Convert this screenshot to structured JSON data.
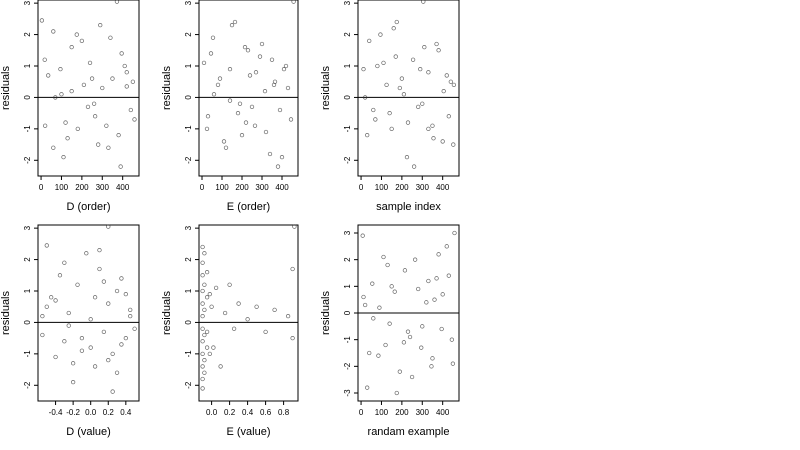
{
  "chart_data": [
    {
      "type": "scatter",
      "title": "",
      "xlabel": "D (order)",
      "ylabel": "residuals",
      "xlim": [
        -15,
        480
      ],
      "ylim": [
        -2.5,
        3.1
      ],
      "xticks": [
        0,
        100,
        200,
        300,
        400
      ],
      "xtick_labels": [
        "0",
        "100",
        "200",
        "300",
        "400"
      ],
      "yticks": [
        -2,
        -1,
        0,
        1,
        2,
        3
      ],
      "ytick_labels": [
        "-2",
        "-1",
        "0",
        "1",
        "2",
        "3"
      ],
      "reference_line_y": 0,
      "marker": "open-circle",
      "series": [
        {
          "x": [
            4,
            18,
            35,
            60,
            95,
            120,
            150,
            180,
            210,
            240,
            265,
            290,
            320,
            350,
            372,
            395,
            420,
            440,
            458,
            60,
            110,
            230,
            300,
            380,
            100,
            200,
            280,
            410,
            150,
            260,
            340,
            450,
            20,
            130,
            330,
            420,
            70,
            250,
            390,
            175
          ],
          "y": [
            2.45,
            1.2,
            0.7,
            2.1,
            0.9,
            -0.8,
            1.6,
            -1.0,
            0.4,
            1.1,
            -0.6,
            2.3,
            -0.9,
            0.6,
            3.05,
            1.4,
            0.35,
            -0.4,
            -0.7,
            -1.6,
            -1.9,
            -0.3,
            0.3,
            -1.2,
            0.1,
            1.8,
            -1.5,
            1.0,
            0.2,
            -0.2,
            1.9,
            0.5,
            -0.9,
            -1.3,
            -1.6,
            0.8,
            0.0,
            0.6,
            -2.2,
            2.0
          ]
        }
      ]
    },
    {
      "type": "scatter",
      "title": "",
      "xlabel": "E (order)",
      "ylabel": "residuals",
      "xlim": [
        -15,
        480
      ],
      "ylim": [
        -2.5,
        3.1
      ],
      "xticks": [
        0,
        100,
        200,
        300,
        400
      ],
      "xtick_labels": [
        "0",
        "100",
        "200",
        "300",
        "400"
      ],
      "yticks": [
        -2,
        -1,
        0,
        1,
        2,
        3
      ],
      "ytick_labels": [
        "-2",
        "-1",
        "0",
        "1",
        "2",
        "3"
      ],
      "reference_line_y": 0,
      "marker": "open-circle",
      "series": [
        {
          "x": [
            10,
            30,
            55,
            80,
            110,
            140,
            165,
            190,
            215,
            240,
            265,
            290,
            315,
            340,
            365,
            390,
            420,
            445,
            458,
            150,
            230,
            320,
            400,
            60,
            200,
            350,
            120,
            270,
            430,
            25,
            180,
            300,
            380,
            90,
            250,
            410,
            45,
            220,
            360,
            140
          ],
          "y": [
            1.1,
            -0.6,
            1.9,
            0.4,
            -1.4,
            0.9,
            2.4,
            -0.2,
            1.6,
            0.7,
            -0.9,
            1.3,
            0.2,
            -1.8,
            0.5,
            -0.4,
            1.0,
            -0.7,
            3.05,
            2.3,
            1.5,
            -1.1,
            -1.9,
            0.1,
            -1.2,
            1.2,
            -1.6,
            0.8,
            0.3,
            -1.0,
            -0.5,
            1.7,
            -2.2,
            0.6,
            -0.3,
            0.9,
            1.4,
            -0.8,
            0.4,
            -0.1
          ]
        }
      ]
    },
    {
      "type": "scatter",
      "title": "",
      "xlabel": "sample index",
      "ylabel": "residuals",
      "xlim": [
        -15,
        480
      ],
      "ylim": [
        -2.5,
        3.1
      ],
      "xticks": [
        0,
        100,
        200,
        300,
        400
      ],
      "xtick_labels": [
        "0",
        "100",
        "200",
        "300",
        "400"
      ],
      "yticks": [
        -2,
        -1,
        0,
        1,
        2,
        3
      ],
      "ytick_labels": [
        "-2",
        "-1",
        "0",
        "1",
        "2",
        "3"
      ],
      "reference_line_y": 0,
      "marker": "open-circle",
      "series": [
        {
          "x": [
            12,
            40,
            70,
            95,
            125,
            150,
            175,
            200,
            225,
            255,
            280,
            305,
            330,
            355,
            380,
            405,
            430,
            452,
            160,
            310,
            60,
            210,
            350,
            110,
            260,
            420,
            30,
            190,
            300,
            440,
            80,
            230,
            370,
            140,
            290,
            400,
            20,
            170,
            330,
            455
          ],
          "y": [
            0.9,
            1.8,
            -0.7,
            2.0,
            0.4,
            -1.0,
            2.4,
            0.6,
            -1.9,
            1.2,
            -0.3,
            3.05,
            0.8,
            -1.3,
            1.5,
            0.2,
            -0.6,
            -1.5,
            2.2,
            1.6,
            -0.4,
            0.1,
            -0.9,
            1.1,
            -2.2,
            0.7,
            -1.2,
            0.3,
            -0.2,
            0.5,
            1.0,
            -0.8,
            1.7,
            -0.5,
            0.9,
            -1.4,
            0.0,
            1.3,
            -1.0,
            0.4
          ]
        }
      ]
    },
    {
      "type": "scatter",
      "title": "",
      "xlabel": "D (value)",
      "ylabel": "residuals",
      "xlim": [
        -0.6,
        0.55
      ],
      "ylim": [
        -2.5,
        3.1
      ],
      "xticks": [
        -0.4,
        -0.2,
        0.0,
        0.2,
        0.4
      ],
      "xtick_labels": [
        "-0.4",
        "-0.2",
        "0.0",
        "0.2",
        "0.4"
      ],
      "yticks": [
        -2,
        -1,
        0,
        1,
        2,
        3
      ],
      "ytick_labels": [
        "-2",
        "-1",
        "0",
        "1",
        "2",
        "3"
      ],
      "reference_line_y": 0,
      "marker": "open-circle",
      "series": [
        {
          "x": [
            -0.55,
            -0.5,
            -0.45,
            -0.4,
            -0.35,
            -0.3,
            -0.25,
            -0.2,
            -0.15,
            -0.1,
            -0.05,
            0.0,
            0.05,
            0.1,
            0.15,
            0.2,
            0.25,
            0.3,
            0.35,
            0.4,
            0.45,
            0.5,
            -0.5,
            -0.3,
            -0.1,
            0.1,
            0.3,
            0.45,
            -0.4,
            -0.2,
            0.0,
            0.2,
            0.4,
            -0.55,
            0.15,
            0.35,
            -0.25,
            0.05,
            0.25,
            0.2
          ],
          "y": [
            -0.4,
            2.45,
            0.8,
            -1.1,
            1.5,
            -0.6,
            0.3,
            -1.9,
            1.2,
            -0.9,
            2.2,
            0.1,
            -1.4,
            1.7,
            -0.3,
            0.6,
            -1.0,
            1.0,
            -0.7,
            0.9,
            0.2,
            -0.2,
            0.5,
            1.9,
            -0.5,
            2.3,
            -1.6,
            0.4,
            0.7,
            -1.3,
            -0.8,
            3.05,
            -0.5,
            0.2,
            1.3,
            1.4,
            -0.1,
            0.8,
            -2.2,
            -1.2
          ]
        }
      ]
    },
    {
      "type": "scatter",
      "title": "",
      "xlabel": "E (value)",
      "ylabel": "residuals",
      "xlim": [
        -0.14,
        0.96
      ],
      "ylim": [
        -2.5,
        3.1
      ],
      "xticks": [
        0.0,
        0.2,
        0.4,
        0.6,
        0.8
      ],
      "xtick_labels": [
        "0.0",
        "0.2",
        "0.4",
        "0.6",
        "0.8"
      ],
      "yticks": [
        -2,
        -1,
        0,
        1,
        2,
        3
      ],
      "ytick_labels": [
        "-2",
        "-1",
        "0",
        "1",
        "2",
        "3"
      ],
      "reference_line_y": 0,
      "marker": "open-circle",
      "series": [
        {
          "x": [
            -0.1,
            -0.1,
            -0.1,
            -0.1,
            -0.1,
            -0.1,
            -0.1,
            -0.1,
            -0.1,
            -0.1,
            -0.1,
            -0.1,
            -0.08,
            -0.08,
            -0.08,
            -0.08,
            -0.08,
            -0.08,
            -0.05,
            -0.05,
            -0.05,
            -0.05,
            -0.02,
            -0.02,
            0.0,
            0.02,
            0.05,
            0.1,
            0.15,
            0.2,
            0.25,
            0.3,
            0.4,
            0.5,
            0.6,
            0.7,
            0.85,
            0.9,
            0.92,
            0.9
          ],
          "y": [
            2.4,
            1.9,
            1.5,
            1.0,
            0.6,
            0.2,
            -0.2,
            -0.6,
            -1.0,
            -1.4,
            -1.8,
            -2.1,
            2.2,
            1.2,
            0.4,
            -0.4,
            -1.2,
            -1.6,
            1.6,
            0.8,
            -0.8,
            -0.3,
            0.9,
            -1.0,
            0.5,
            -0.8,
            1.1,
            -1.4,
            0.3,
            1.2,
            -0.2,
            0.6,
            0.1,
            0.5,
            -0.3,
            0.4,
            0.2,
            1.7,
            3.05,
            -0.5
          ]
        }
      ]
    },
    {
      "type": "scatter",
      "title": "",
      "xlabel": "randam example",
      "ylabel": "residuals",
      "xlim": [
        -15,
        480
      ],
      "ylim": [
        -3.3,
        3.3
      ],
      "xticks": [
        0,
        100,
        200,
        300,
        400
      ],
      "xtick_labels": [
        "0",
        "100",
        "200",
        "300",
        "400"
      ],
      "yticks": [
        -3,
        -2,
        -1,
        0,
        1,
        2,
        3
      ],
      "ytick_labels": [
        "-3",
        "-2",
        "-1",
        "0",
        "1",
        "2",
        "3"
      ],
      "reference_line_y": 0,
      "marker": "open-circle",
      "series": [
        {
          "x": [
            8,
            30,
            55,
            85,
            110,
            140,
            165,
            190,
            215,
            240,
            265,
            295,
            320,
            345,
            370,
            395,
            420,
            445,
            458,
            175,
            12,
            60,
            130,
            210,
            280,
            350,
            430,
            90,
            250,
            400,
            40,
            150,
            300,
            380,
            20,
            230,
            330,
            450,
            120,
            360
          ],
          "y": [
            2.9,
            -2.8,
            1.1,
            -1.6,
            2.1,
            -0.4,
            0.8,
            -2.2,
            1.6,
            -0.9,
            2.0,
            -1.3,
            0.4,
            -2.0,
            1.3,
            -0.6,
            2.5,
            -1.0,
            3.0,
            -3.0,
            0.6,
            -0.2,
            1.8,
            -1.1,
            0.9,
            -1.7,
            1.4,
            0.2,
            -2.4,
            0.7,
            -1.5,
            1.0,
            -0.5,
            2.2,
            0.3,
            -0.7,
            1.2,
            -1.9,
            -1.2,
            0.5
          ]
        }
      ]
    }
  ]
}
